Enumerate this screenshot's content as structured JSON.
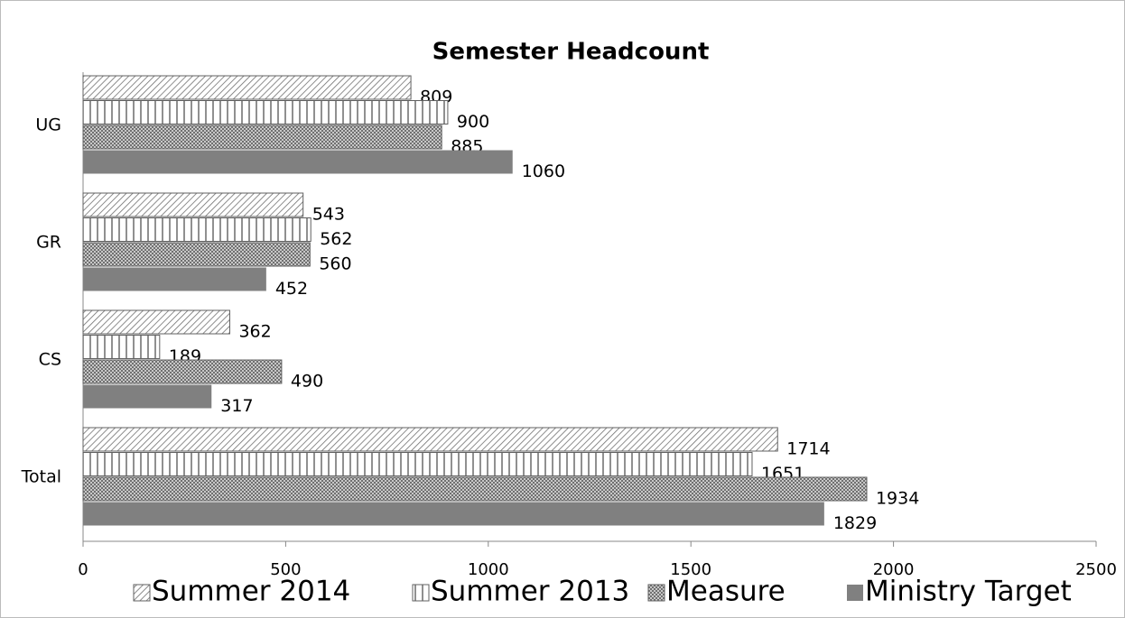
{
  "chart_data": {
    "type": "hbar",
    "title": "Semester Headcount",
    "categories": [
      "UG",
      "GR",
      "CS",
      "Total"
    ],
    "series": [
      {
        "name": "Summer 2014",
        "color": "#808080",
        "pattern": "diagonal-stripes",
        "values": [
          809,
          543,
          362,
          1714
        ]
      },
      {
        "name": "Summer 2013",
        "color": "#808080",
        "pattern": "vertical-stripes",
        "values": [
          900,
          562,
          189,
          1651
        ]
      },
      {
        "name": "Measure",
        "color": "#808080",
        "pattern": "crosshatch",
        "values": [
          885,
          560,
          490,
          1934
        ]
      },
      {
        "name": "Ministry Target",
        "color": "#808080",
        "pattern": "solid",
        "values": [
          1060,
          452,
          317,
          1829
        ]
      }
    ],
    "xlim": [
      0,
      2500
    ],
    "xticks": [
      0,
      500,
      1000,
      1500,
      2000,
      2500
    ],
    "legend": "bottom"
  }
}
